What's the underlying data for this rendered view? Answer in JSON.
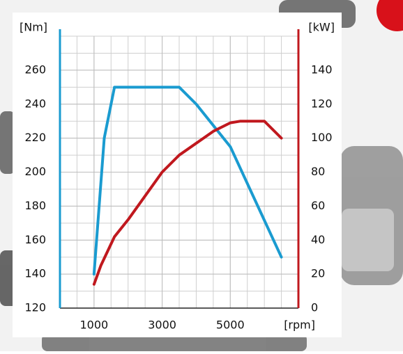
{
  "chart_data": {
    "type": "line",
    "y_label": "[Nm]",
    "y2_label": "[kW]",
    "x_label": "[rpm]",
    "xlim": [
      0,
      7000
    ],
    "xticks": [
      1000,
      3000,
      5000
    ],
    "ylim": [
      120,
      280
    ],
    "yticks": [
      120,
      140,
      160,
      180,
      200,
      220,
      240,
      260
    ],
    "y2lim": [
      0,
      160
    ],
    "y2ticks": [
      0,
      20,
      40,
      60,
      80,
      100,
      120,
      140
    ],
    "grid": true,
    "y_axis_color": "#1a9bd0",
    "y2_axis_color": "#c0181e",
    "series": [
      {
        "color": "#1a9bd0",
        "x": [
          1000,
          1300,
          1600,
          3500,
          4000,
          5000,
          6500
        ],
        "values": [
          140,
          220,
          250,
          250,
          240,
          215,
          150
        ]
      },
      {
        "color": "#c0181e",
        "axis": "y2",
        "x": [
          1000,
          1200,
          1600,
          2000,
          3000,
          3500,
          4500,
          5000,
          5300,
          6000,
          6500
        ],
        "values": [
          14,
          25,
          42,
          52,
          80,
          90,
          104,
          109,
          110,
          110,
          100
        ]
      }
    ]
  }
}
